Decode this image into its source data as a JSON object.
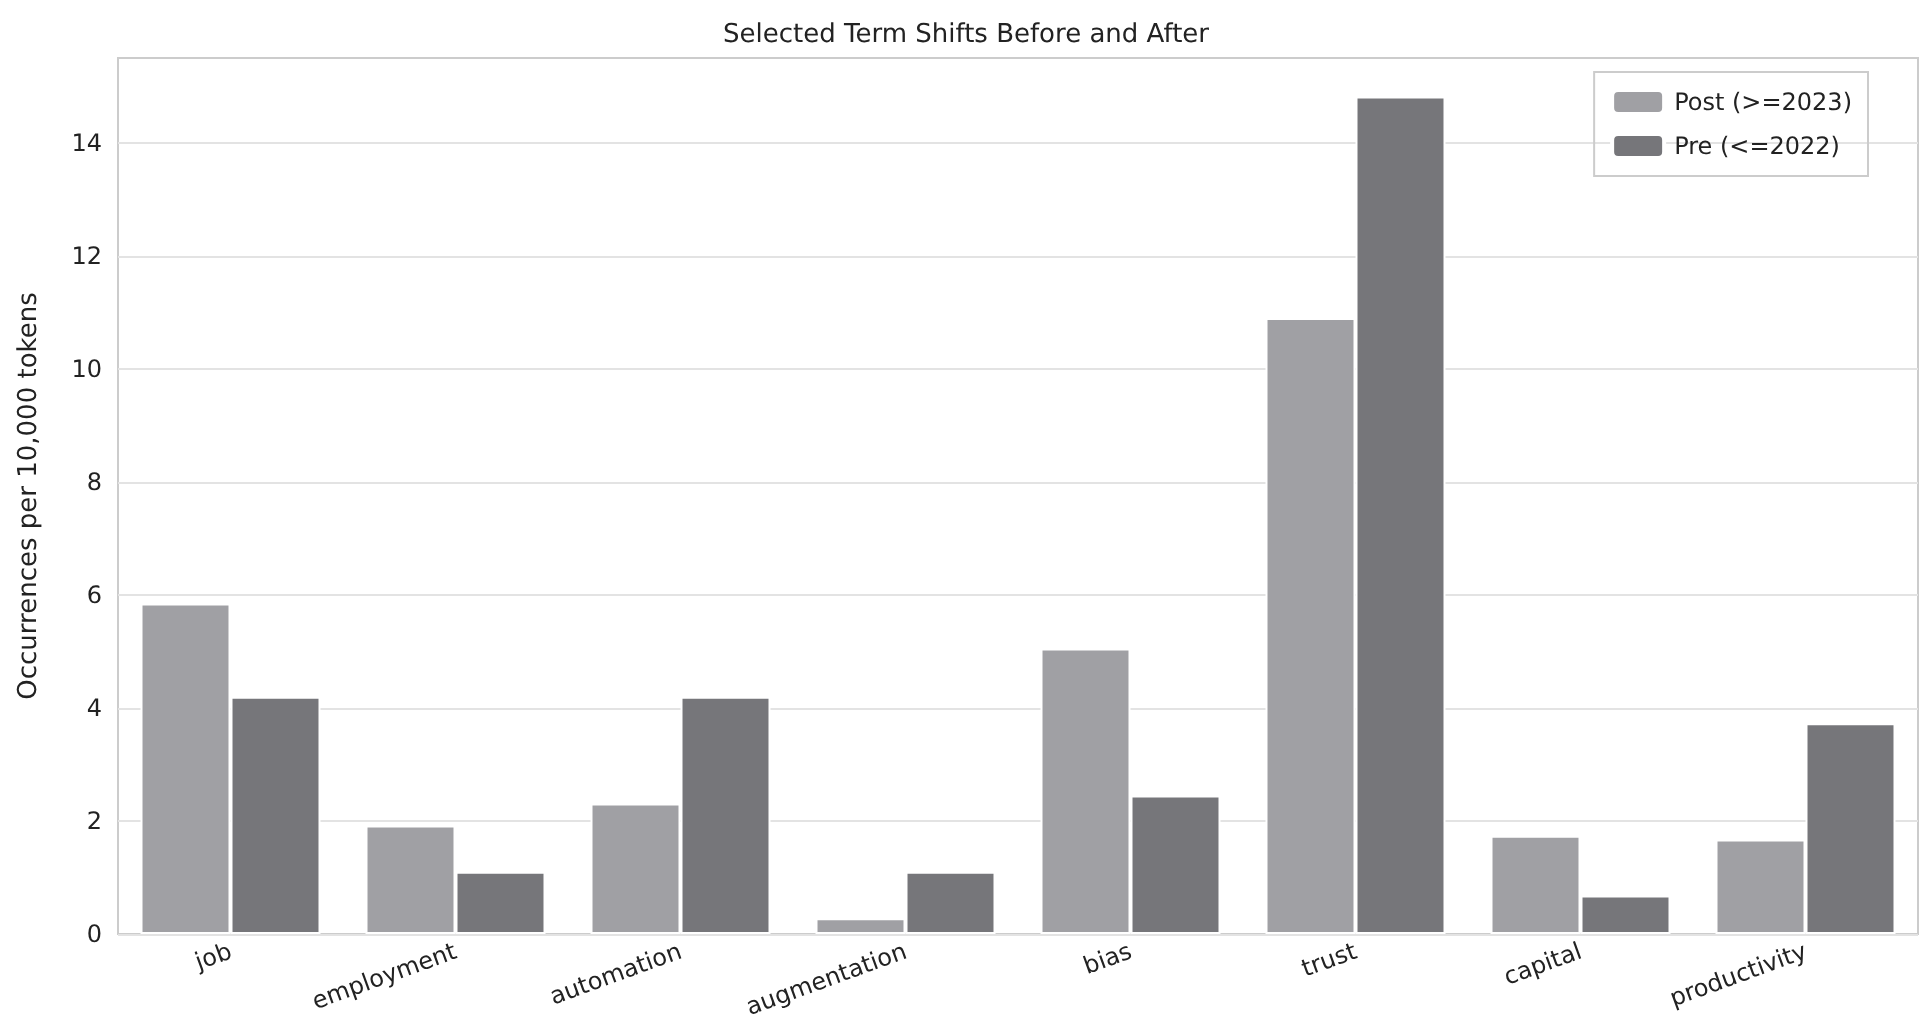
{
  "chart_data": {
    "type": "bar",
    "title": "Selected Term Shifts Before and After",
    "ylabel": "Occurrences per 10,000 tokens",
    "categories": [
      "job",
      "employment",
      "automation",
      "augmentation",
      "bias",
      "trust",
      "capital",
      "productivity"
    ],
    "series": [
      {
        "name": "Post (>=2023)",
        "color": "#a0a0a4",
        "values": [
          5.85,
          1.92,
          2.31,
          0.28,
          5.05,
          10.9,
          1.74,
          1.67
        ]
      },
      {
        "name": "Pre (<=2022)",
        "color": "#76767a",
        "values": [
          4.2,
          1.1,
          4.2,
          1.1,
          2.45,
          14.82,
          0.68,
          3.73
        ]
      }
    ],
    "ylim": [
      0,
      15.5
    ],
    "yticks": [
      0,
      2,
      4,
      6,
      8,
      10,
      12,
      14
    ],
    "grid": "y",
    "legend": "top right"
  }
}
